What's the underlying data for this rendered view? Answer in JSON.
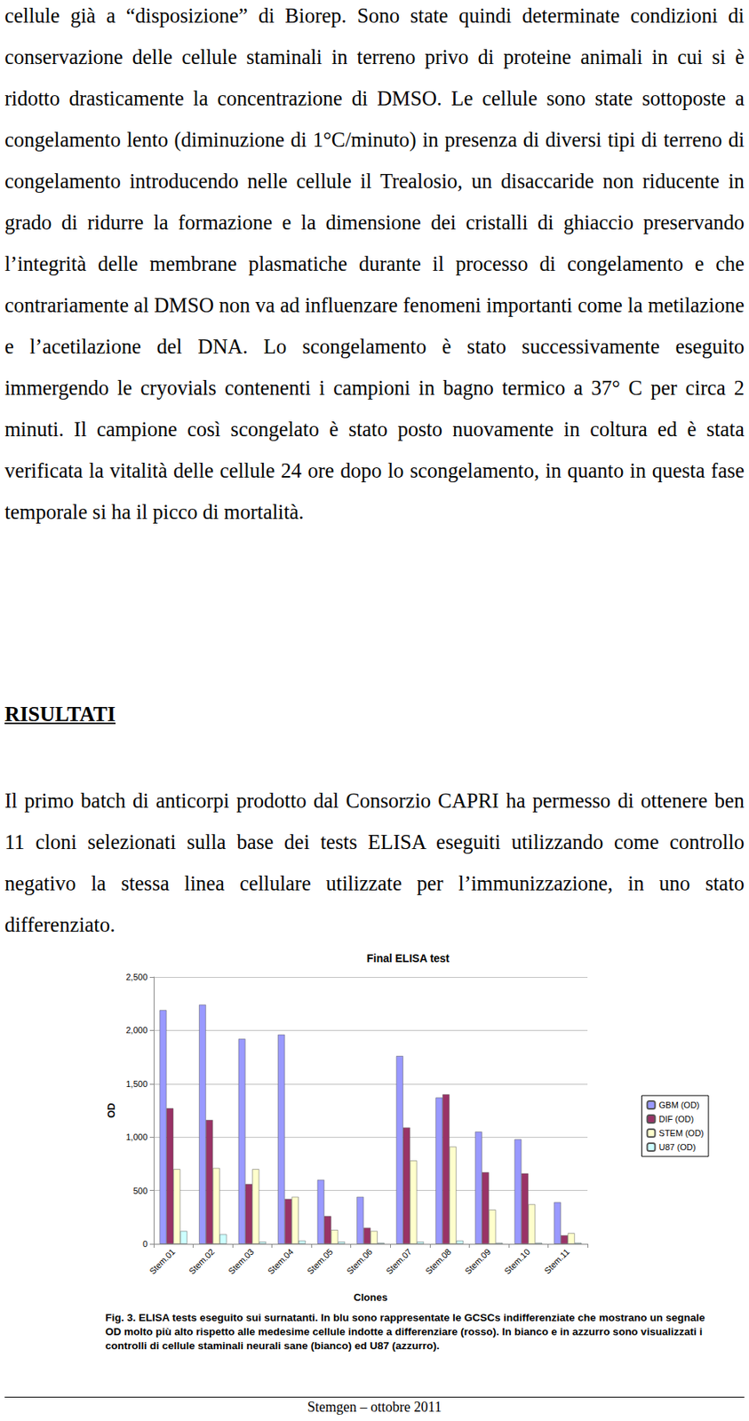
{
  "text_top": "cellule già a “disposizione” di Biorep. Sono state quindi determinate condizioni di conservazione delle cellule staminali in terreno privo di proteine animali in cui si è ridotto drasticamente la concentrazione di DMSO. Le cellule sono state sottoposte a congelamento lento (diminuzione di 1°C/minuto) in presenza di diversi tipi di terreno di congelamento introducendo nelle cellule il Trealosio, un disaccaride non riducente in grado di ridurre la formazione e la dimensione dei cristalli di ghiaccio preservando l’integrità delle membrane plasmatiche durante il processo di congelamento e che contrariamente al DMSO non va ad influenzare fenomeni importanti come la metilazione e l’acetilazione del DNA. Lo scongelamento è stato successivamente eseguito immergendo le cryovials contenenti i campioni in bagno termico a 37° C per circa 2 minuti. Il campione così scongelato è stato posto nuovamente in coltura ed è stata verificata la vitalità delle cellule 24 ore dopo lo scongelamento, in quanto in questa fase temporale si ha il picco di mortalità.",
  "heading": "RISULTATI",
  "text_results": "Il primo batch di anticorpi prodotto dal Consorzio CAPRI ha permesso di ottenere ben 11 cloni selezionati sulla base dei tests ELISA eseguiti utilizzando come controllo negativo la stessa linea cellulare utilizzate per l’immunizzazione, in uno stato differenziato.",
  "chart_data": {
    "type": "bar",
    "title": "Final ELISA test",
    "x_label": "Clones",
    "y_label": "OD",
    "categories": [
      "Stem.01",
      "Stem.02",
      "Stem.03",
      "Stem.04",
      "Stem.05",
      "Stem.06",
      "Stem.07",
      "Stem.08",
      "Stem.09",
      "Stem.10",
      "Stem.11"
    ],
    "series": [
      {
        "name": "GBM (OD)",
        "color": "#9999ff",
        "values": [
          2190,
          2240,
          1920,
          1960,
          600,
          440,
          1760,
          1370,
          1050,
          980,
          390
        ]
      },
      {
        "name": "DIF (OD)",
        "color": "#993366",
        "values": [
          1270,
          1160,
          560,
          420,
          260,
          150,
          1090,
          1400,
          670,
          660,
          80
        ]
      },
      {
        "name": "STEM (OD)",
        "color": "#ffffcc",
        "values": [
          700,
          710,
          700,
          440,
          130,
          120,
          780,
          910,
          320,
          370,
          100
        ]
      },
      {
        "name": "U87 (OD)",
        "color": "#ccffff",
        "values": [
          120,
          90,
          20,
          30,
          20,
          10,
          20,
          30,
          10,
          10,
          10
        ]
      }
    ],
    "ylim": [
      0,
      2500
    ],
    "yticks": [
      0,
      500,
      1000,
      1500,
      2000,
      2500
    ],
    "grid": true,
    "legend": "right"
  },
  "caption": "Fig. 3. ELISA tests eseguito sui surnatanti. In blu sono rappresentate le GCSCs indifferenziate che mostrano un segnale OD molto più alto rispetto alle medesime cellule indotte a differenziare (rosso). In bianco e in azzurro sono visualizzati i controlli di cellule staminali neurali sane (bianco) ed U87 (azzurro).",
  "footer": "Stemgen – ottobre 2011"
}
